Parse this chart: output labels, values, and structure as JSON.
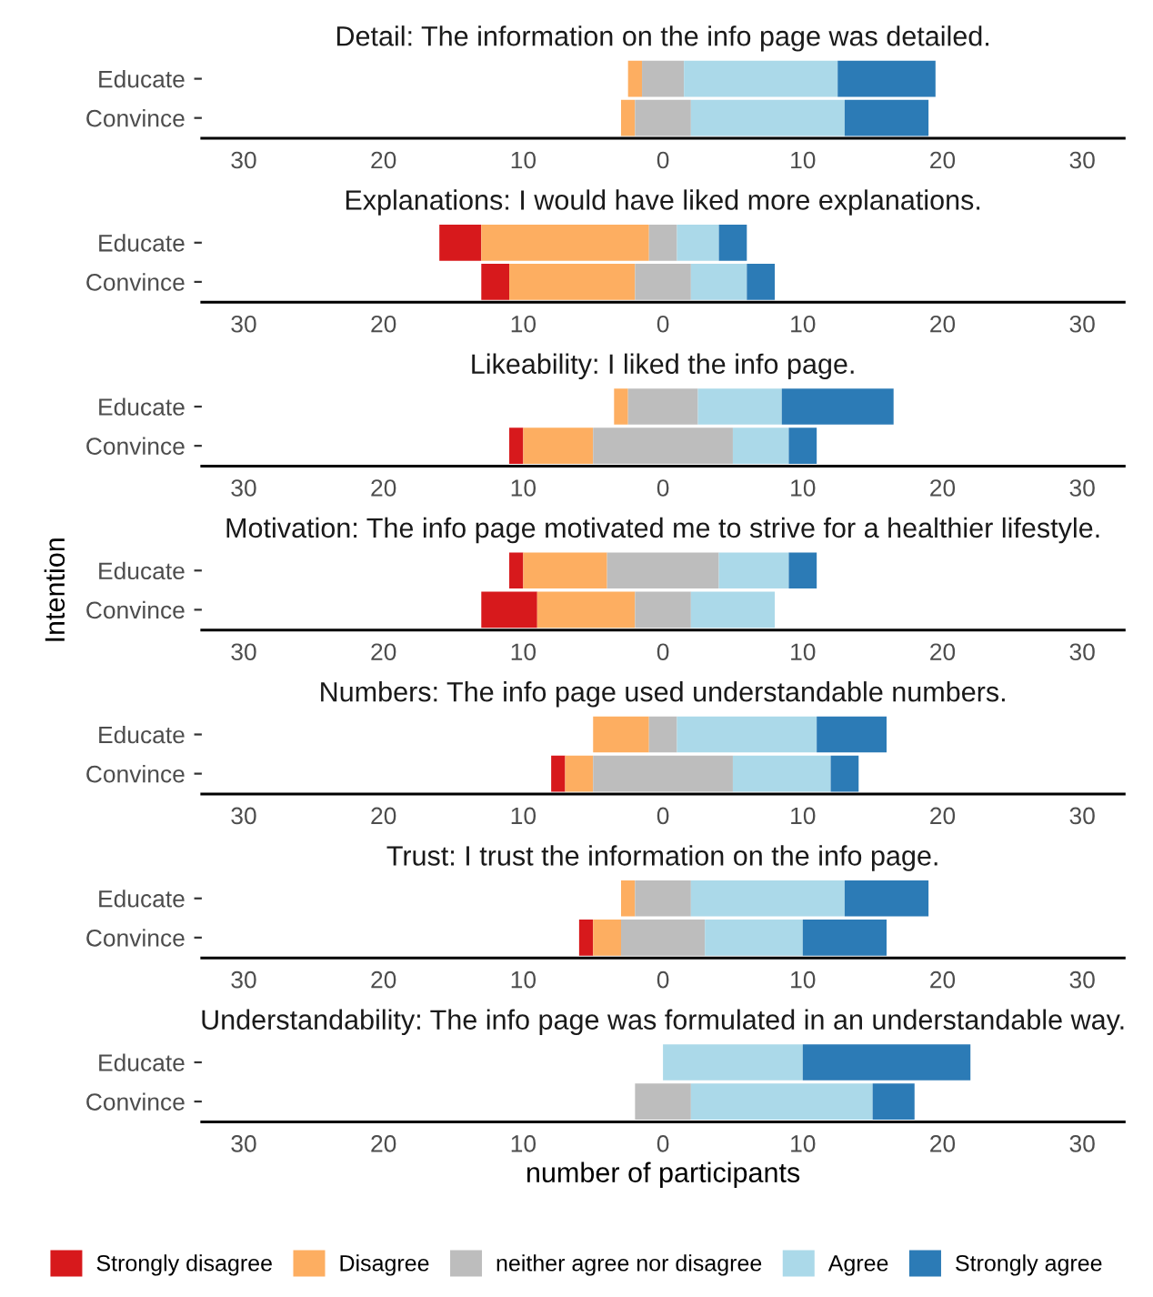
{
  "chart_data": [
    {
      "type": "bar",
      "orientation": "horizontal",
      "stacked": true,
      "title": "Detail: The information on the info page was detailed.",
      "categories": [
        "Educate",
        "Convince"
      ],
      "xlim": [
        -33,
        33
      ],
      "xticks": [
        {
          "value": -30,
          "label": "30"
        },
        {
          "value": -20,
          "label": "20"
        },
        {
          "value": -10,
          "label": "10"
        },
        0,
        10,
        20,
        30
      ],
      "grid": false,
      "series": [
        {
          "color": "#d7191c",
          "base": [
            null,
            null
          ],
          "values": [
            null,
            null
          ]
        },
        {
          "color": "#fdae61",
          "base": [
            -2.5,
            -3
          ],
          "values": [
            1,
            1
          ]
        },
        {
          "color": "#bdbdbd",
          "base": [
            -1.5,
            -2
          ],
          "values": [
            3,
            4
          ]
        },
        {
          "color": "#abd9e9",
          "base": [
            1.5,
            2
          ],
          "values": [
            11,
            11
          ]
        },
        {
          "color": "#2c7bb6",
          "base": [
            12.5,
            13
          ],
          "values": [
            7,
            6
          ]
        }
      ]
    },
    {
      "type": "bar",
      "orientation": "horizontal",
      "stacked": true,
      "title": "Explanations: I would have liked more explanations.",
      "categories": [
        "Educate",
        "Convince"
      ],
      "xlim": [
        -33,
        33
      ],
      "xticks": [
        {
          "value": -30,
          "label": "30"
        },
        {
          "value": -20,
          "label": "20"
        },
        {
          "value": -10,
          "label": "10"
        },
        0,
        10,
        20,
        30
      ],
      "grid": false,
      "series": [
        {
          "color": "#d7191c",
          "base": [
            -16,
            -13
          ],
          "values": [
            3,
            2
          ]
        },
        {
          "color": "#fdae61",
          "base": [
            -13,
            -11
          ],
          "values": [
            12,
            9
          ]
        },
        {
          "color": "#bdbdbd",
          "base": [
            -1,
            -2
          ],
          "values": [
            2,
            4
          ]
        },
        {
          "color": "#abd9e9",
          "base": [
            1,
            2
          ],
          "values": [
            3,
            4
          ]
        },
        {
          "color": "#2c7bb6",
          "base": [
            4,
            6
          ],
          "values": [
            2,
            2
          ]
        }
      ]
    },
    {
      "type": "bar",
      "orientation": "horizontal",
      "stacked": true,
      "title": "Likeability: I liked the info page.",
      "categories": [
        "Educate",
        "Convince"
      ],
      "xlim": [
        -33,
        33
      ],
      "xticks": [
        {
          "value": -30,
          "label": "30"
        },
        {
          "value": -20,
          "label": "20"
        },
        {
          "value": -10,
          "label": "10"
        },
        0,
        10,
        20,
        30
      ],
      "grid": false,
      "series": [
        {
          "color": "#d7191c",
          "base": [
            null,
            -11
          ],
          "values": [
            null,
            1
          ]
        },
        {
          "color": "#fdae61",
          "base": [
            -3.5,
            -10
          ],
          "values": [
            1,
            5
          ]
        },
        {
          "color": "#bdbdbd",
          "base": [
            -2.5,
            -5
          ],
          "values": [
            5,
            10
          ]
        },
        {
          "color": "#abd9e9",
          "base": [
            2.5,
            5
          ],
          "values": [
            6,
            4
          ]
        },
        {
          "color": "#2c7bb6",
          "base": [
            8.5,
            9
          ],
          "values": [
            8,
            2
          ]
        }
      ]
    },
    {
      "type": "bar",
      "orientation": "horizontal",
      "stacked": true,
      "title": "Motivation: The info page motivated me to strive for a healthier lifestyle.",
      "ylabel": "Intention",
      "categories": [
        "Educate",
        "Convince"
      ],
      "xlim": [
        -33,
        33
      ],
      "xticks": [
        {
          "value": -30,
          "label": "30"
        },
        {
          "value": -20,
          "label": "20"
        },
        {
          "value": -10,
          "label": "10"
        },
        0,
        10,
        20,
        30
      ],
      "grid": false,
      "series": [
        {
          "color": "#d7191c",
          "base": [
            -11,
            -13
          ],
          "values": [
            1,
            4
          ]
        },
        {
          "color": "#fdae61",
          "base": [
            -10,
            -9
          ],
          "values": [
            6,
            7
          ]
        },
        {
          "color": "#bdbdbd",
          "base": [
            -4,
            -2
          ],
          "values": [
            8,
            4
          ]
        },
        {
          "color": "#abd9e9",
          "base": [
            4,
            2
          ],
          "values": [
            5,
            6
          ]
        },
        {
          "color": "#2c7bb6",
          "base": [
            9,
            null
          ],
          "values": [
            2,
            null
          ]
        }
      ]
    },
    {
      "type": "bar",
      "orientation": "horizontal",
      "stacked": true,
      "title": "Numbers: The info page used understandable numbers.",
      "categories": [
        "Educate",
        "Convince"
      ],
      "xlim": [
        -33,
        33
      ],
      "xticks": [
        {
          "value": -30,
          "label": "30"
        },
        {
          "value": -20,
          "label": "20"
        },
        {
          "value": -10,
          "label": "10"
        },
        0,
        10,
        20,
        30
      ],
      "grid": false,
      "series": [
        {
          "color": "#d7191c",
          "base": [
            null,
            -8
          ],
          "values": [
            null,
            1
          ]
        },
        {
          "color": "#fdae61",
          "base": [
            -5,
            -7
          ],
          "values": [
            4,
            2
          ]
        },
        {
          "color": "#bdbdbd",
          "base": [
            -1,
            -5
          ],
          "values": [
            2,
            10
          ]
        },
        {
          "color": "#abd9e9",
          "base": [
            1,
            5
          ],
          "values": [
            10,
            7
          ]
        },
        {
          "color": "#2c7bb6",
          "base": [
            11,
            12
          ],
          "values": [
            5,
            2
          ]
        }
      ]
    },
    {
      "type": "bar",
      "orientation": "horizontal",
      "stacked": true,
      "title": "Trust: I trust the information on the info page.",
      "categories": [
        "Educate",
        "Convince"
      ],
      "xlim": [
        -33,
        33
      ],
      "xticks": [
        {
          "value": -30,
          "label": "30"
        },
        {
          "value": -20,
          "label": "20"
        },
        {
          "value": -10,
          "label": "10"
        },
        0,
        10,
        20,
        30
      ],
      "grid": false,
      "series": [
        {
          "color": "#d7191c",
          "base": [
            null,
            -6
          ],
          "values": [
            null,
            1
          ]
        },
        {
          "color": "#fdae61",
          "base": [
            -3,
            -5
          ],
          "values": [
            1,
            2
          ]
        },
        {
          "color": "#bdbdbd",
          "base": [
            -2,
            -3
          ],
          "values": [
            4,
            6
          ]
        },
        {
          "color": "#abd9e9",
          "base": [
            2,
            3
          ],
          "values": [
            11,
            7
          ]
        },
        {
          "color": "#2c7bb6",
          "base": [
            13,
            10
          ],
          "values": [
            6,
            6
          ]
        }
      ]
    },
    {
      "type": "bar",
      "orientation": "horizontal",
      "stacked": true,
      "title": "Understandability: The info page was formulated in an understandable way.",
      "xlabel": "number of participants",
      "categories": [
        "Educate",
        "Convince"
      ],
      "xlim": [
        -33,
        33
      ],
      "xticks": [
        {
          "value": -30,
          "label": "30"
        },
        {
          "value": -20,
          "label": "20"
        },
        {
          "value": -10,
          "label": "10"
        },
        0,
        10,
        20,
        30
      ],
      "grid": false,
      "legend": "bottom",
      "series": [
        {
          "name": "Strongly disagree",
          "color": "#d7191c",
          "base": [
            null,
            null
          ],
          "values": [
            null,
            null
          ]
        },
        {
          "name": "Disagree",
          "color": "#fdae61",
          "base": [
            null,
            null
          ],
          "values": [
            null,
            null
          ]
        },
        {
          "name": "neither agree nor disagree",
          "color": "#bdbdbd",
          "base": [
            null,
            -2
          ],
          "values": [
            null,
            4
          ]
        },
        {
          "name": "Agree",
          "color": "#abd9e9",
          "base": [
            0,
            2
          ],
          "values": [
            10,
            13
          ]
        },
        {
          "name": "Strongly agree",
          "color": "#2c7bb6",
          "base": [
            10,
            15
          ],
          "values": [
            12,
            3
          ]
        }
      ]
    }
  ]
}
